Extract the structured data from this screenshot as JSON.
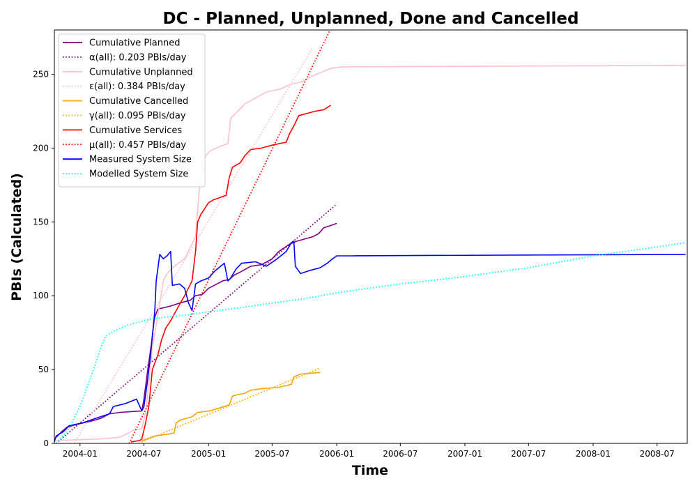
{
  "chart_data": {
    "type": "line",
    "title": "DC - Planned, Unplanned, Done  and Cancelled",
    "xlabel": "Time",
    "ylabel": "PBIs (Calculated)",
    "xlim": [
      "2003-10-20",
      "2008-09-25"
    ],
    "ylim": [
      0,
      280
    ],
    "x_ticks": [
      "2004-01",
      "2004-07",
      "2005-01",
      "2005-07",
      "2006-01",
      "2006-07",
      "2007-01",
      "2007-07",
      "2008-01",
      "2008-07"
    ],
    "y_ticks": [
      0,
      50,
      100,
      150,
      200,
      250
    ],
    "legend_position": "upper-left",
    "grid": false,
    "series": [
      {
        "name": "Cumulative Planned",
        "color": "#800080",
        "style": "solid",
        "points": [
          [
            "2003-10-25",
            4
          ],
          [
            "2003-11-10",
            8
          ],
          [
            "2003-11-25",
            11
          ],
          [
            "2003-12-25",
            13
          ],
          [
            "2004-02-01",
            15
          ],
          [
            "2004-03-01",
            17
          ],
          [
            "2004-03-25",
            20
          ],
          [
            "2004-04-25",
            21
          ],
          [
            "2004-06-25",
            22
          ],
          [
            "2004-07-01",
            30
          ],
          [
            "2004-07-12",
            50
          ],
          [
            "2004-07-22",
            67
          ],
          [
            "2004-07-31",
            85
          ],
          [
            "2004-08-10",
            91
          ],
          [
            "2004-09-15",
            93
          ],
          [
            "2004-10-10",
            95
          ],
          [
            "2004-11-10",
            97
          ],
          [
            "2004-11-25",
            100
          ],
          [
            "2004-12-15",
            101
          ],
          [
            "2005-01-01",
            105
          ],
          [
            "2005-01-25",
            108
          ],
          [
            "2005-02-10",
            110
          ],
          [
            "2005-03-01",
            111
          ],
          [
            "2005-03-15",
            114
          ],
          [
            "2005-04-01",
            116
          ],
          [
            "2005-05-01",
            120
          ],
          [
            "2005-06-01",
            121
          ],
          [
            "2005-07-01",
            125
          ],
          [
            "2005-07-20",
            130
          ],
          [
            "2005-08-20",
            135
          ],
          [
            "2005-09-10",
            137
          ],
          [
            "2005-10-25",
            140
          ],
          [
            "2005-11-10",
            142
          ],
          [
            "2005-11-25",
            146
          ],
          [
            "2005-12-20",
            148
          ],
          [
            "2006-01-01",
            149
          ]
        ]
      },
      {
        "name": "α(all): 0.203 PBIs/day",
        "color": "#800080",
        "style": "dotted",
        "points": [
          [
            "2003-10-25",
            0
          ],
          [
            "2006-01-01",
            162
          ]
        ]
      },
      {
        "name": "Cumulative Unplanned",
        "color": "#ffc0cb",
        "style": "solid",
        "points": [
          [
            "2003-10-25",
            2
          ],
          [
            "2004-03-01",
            3
          ],
          [
            "2004-04-20",
            4
          ],
          [
            "2004-05-10",
            6
          ],
          [
            "2004-06-01",
            9
          ],
          [
            "2004-06-25",
            10
          ],
          [
            "2004-07-05",
            20
          ],
          [
            "2004-07-15",
            40
          ],
          [
            "2004-07-25",
            65
          ],
          [
            "2004-08-05",
            80
          ],
          [
            "2004-08-15",
            95
          ],
          [
            "2004-08-25",
            110
          ],
          [
            "2004-09-05",
            115
          ],
          [
            "2004-09-25",
            120
          ],
          [
            "2004-10-25",
            125
          ],
          [
            "2004-11-25",
            140
          ],
          [
            "2004-12-05",
            170
          ],
          [
            "2004-12-15",
            190
          ],
          [
            "2004-12-25",
            195
          ],
          [
            "2005-01-05",
            198
          ],
          [
            "2005-02-01",
            201
          ],
          [
            "2005-02-25",
            203
          ],
          [
            "2005-03-05",
            220
          ],
          [
            "2005-03-25",
            225
          ],
          [
            "2005-04-15",
            230
          ],
          [
            "2005-05-15",
            234
          ],
          [
            "2005-06-15",
            238
          ],
          [
            "2005-07-25",
            240
          ],
          [
            "2005-08-20",
            243
          ],
          [
            "2005-09-25",
            245
          ],
          [
            "2005-10-25",
            249
          ],
          [
            "2005-11-25",
            252
          ],
          [
            "2005-12-15",
            254
          ],
          [
            "2006-01-15",
            255
          ],
          [
            "2008-09-20",
            256
          ]
        ]
      },
      {
        "name": "ε(all): 0.384 PBIs/day",
        "color": "#ffc0cb",
        "style": "dotted",
        "points": [
          [
            "2003-12-15",
            0
          ],
          [
            "2005-10-25",
            268
          ]
        ]
      },
      {
        "name": "Cumulative Cancelled",
        "color": "#ffa500",
        "style": "solid",
        "points": [
          [
            "2004-06-25",
            2
          ],
          [
            "2004-07-10",
            3
          ],
          [
            "2004-08-01",
            5
          ],
          [
            "2004-09-01",
            6
          ],
          [
            "2004-09-25",
            7
          ],
          [
            "2004-10-01",
            14
          ],
          [
            "2004-10-15",
            16
          ],
          [
            "2004-11-15",
            18
          ],
          [
            "2004-12-01",
            21
          ],
          [
            "2005-01-05",
            22
          ],
          [
            "2005-02-01",
            24
          ],
          [
            "2005-03-01",
            26
          ],
          [
            "2005-03-10",
            32
          ],
          [
            "2005-03-25",
            33
          ],
          [
            "2005-04-15",
            34
          ],
          [
            "2005-05-01",
            36
          ],
          [
            "2005-06-01",
            37
          ],
          [
            "2005-07-20",
            38
          ],
          [
            "2005-08-25",
            40
          ],
          [
            "2005-09-01",
            45
          ],
          [
            "2005-09-20",
            47
          ],
          [
            "2005-11-15",
            48
          ]
        ]
      },
      {
        "name": "γ(all): 0.095 PBIs/day",
        "color": "#ffa500",
        "style": "dotted",
        "points": [
          [
            "2004-06-25",
            1
          ],
          [
            "2005-11-15",
            51
          ]
        ]
      },
      {
        "name": "Cumulative Services",
        "color": "#ff0000",
        "style": "solid",
        "points": [
          [
            "2004-05-25",
            1
          ],
          [
            "2004-06-20",
            2
          ],
          [
            "2004-06-25",
            3
          ],
          [
            "2004-07-05",
            13
          ],
          [
            "2004-07-15",
            25
          ],
          [
            "2004-07-25",
            50
          ],
          [
            "2004-08-10",
            60
          ],
          [
            "2004-08-20",
            70
          ],
          [
            "2004-09-01",
            78
          ],
          [
            "2004-09-15",
            83
          ],
          [
            "2004-10-01",
            90
          ],
          [
            "2004-10-15",
            96
          ],
          [
            "2004-10-25",
            100
          ],
          [
            "2004-11-15",
            110
          ],
          [
            "2004-11-25",
            130
          ],
          [
            "2004-12-01",
            150
          ],
          [
            "2004-12-10",
            155
          ],
          [
            "2005-01-01",
            163
          ],
          [
            "2005-01-15",
            165
          ],
          [
            "2005-02-20",
            168
          ],
          [
            "2005-03-01",
            180
          ],
          [
            "2005-03-10",
            187
          ],
          [
            "2005-04-01",
            190
          ],
          [
            "2005-04-15",
            195
          ],
          [
            "2005-05-01",
            199
          ],
          [
            "2005-06-01",
            200
          ],
          [
            "2005-07-01",
            202
          ],
          [
            "2005-08-10",
            204
          ],
          [
            "2005-08-20",
            210
          ],
          [
            "2005-09-01",
            215
          ],
          [
            "2005-09-15",
            222
          ],
          [
            "2005-10-01",
            223
          ],
          [
            "2005-11-01",
            225
          ],
          [
            "2005-11-25",
            226
          ],
          [
            "2005-12-15",
            229
          ]
        ]
      },
      {
        "name": "μ(all): 0.457 PBIs/day",
        "color": "#ff0000",
        "style": "dotted",
        "points": [
          [
            "2004-05-20",
            0
          ],
          [
            "2005-12-15",
            281
          ]
        ]
      },
      {
        "name": "Measured System Size",
        "color": "#0000ff",
        "style": "solid",
        "points": [
          [
            "2003-10-20",
            1
          ],
          [
            "2003-10-25",
            5
          ],
          [
            "2003-11-15",
            8
          ],
          [
            "2003-12-01",
            12
          ],
          [
            "2004-01-10",
            14
          ],
          [
            "2004-02-15",
            17
          ],
          [
            "2004-03-25",
            20
          ],
          [
            "2004-04-05",
            25
          ],
          [
            "2004-05-10",
            27
          ],
          [
            "2004-06-10",
            30
          ],
          [
            "2004-06-25",
            22
          ],
          [
            "2004-07-01",
            25
          ],
          [
            "2004-07-10",
            40
          ],
          [
            "2004-07-20",
            60
          ],
          [
            "2004-08-01",
            90
          ],
          [
            "2004-08-05",
            110
          ],
          [
            "2004-08-15",
            128
          ],
          [
            "2004-08-25",
            125
          ],
          [
            "2004-09-05",
            127
          ],
          [
            "2004-09-15",
            130
          ],
          [
            "2004-09-20",
            107
          ],
          [
            "2004-10-10",
            108
          ],
          [
            "2004-10-25",
            105
          ],
          [
            "2004-11-05",
            95
          ],
          [
            "2004-11-15",
            90
          ],
          [
            "2004-11-25",
            108
          ],
          [
            "2004-12-10",
            110
          ],
          [
            "2005-01-01",
            112
          ],
          [
            "2005-01-20",
            117
          ],
          [
            "2005-02-15",
            122
          ],
          [
            "2005-02-25",
            110
          ],
          [
            "2005-03-05",
            112
          ],
          [
            "2005-03-20",
            118
          ],
          [
            "2005-04-05",
            122
          ],
          [
            "2005-05-15",
            123
          ],
          [
            "2005-06-15",
            120
          ],
          [
            "2005-07-15",
            125
          ],
          [
            "2005-08-10",
            130
          ],
          [
            "2005-08-25",
            136
          ],
          [
            "2005-09-01",
            137
          ],
          [
            "2005-09-05",
            120
          ],
          [
            "2005-09-20",
            115
          ],
          [
            "2005-10-15",
            117
          ],
          [
            "2005-11-15",
            119
          ],
          [
            "2005-12-05",
            122
          ],
          [
            "2005-12-20",
            125
          ],
          [
            "2006-01-01",
            127
          ],
          [
            "2008-09-20",
            128
          ]
        ]
      },
      {
        "name": "Modelled System Size",
        "color": "#00ffff",
        "style": "dotted",
        "points": [
          [
            "2003-10-25",
            0
          ],
          [
            "2003-12-01",
            10
          ],
          [
            "2004-01-01",
            25
          ],
          [
            "2004-02-01",
            45
          ],
          [
            "2004-03-01",
            65
          ],
          [
            "2004-03-15",
            73
          ],
          [
            "2004-04-15",
            77
          ],
          [
            "2004-05-15",
            80
          ],
          [
            "2004-06-15",
            82
          ],
          [
            "2004-07-15",
            84
          ],
          [
            "2004-08-15",
            85
          ],
          [
            "2004-09-15",
            86
          ],
          [
            "2004-11-01",
            87
          ],
          [
            "2005-01-01",
            89
          ],
          [
            "2005-04-01",
            92
          ],
          [
            "2005-07-01",
            95
          ],
          [
            "2005-10-01",
            98
          ],
          [
            "2006-01-01",
            102
          ],
          [
            "2006-07-01",
            108
          ],
          [
            "2007-01-01",
            113
          ],
          [
            "2007-07-01",
            119
          ],
          [
            "2008-01-01",
            127
          ],
          [
            "2008-07-01",
            133
          ],
          [
            "2008-09-20",
            136
          ]
        ]
      }
    ]
  }
}
